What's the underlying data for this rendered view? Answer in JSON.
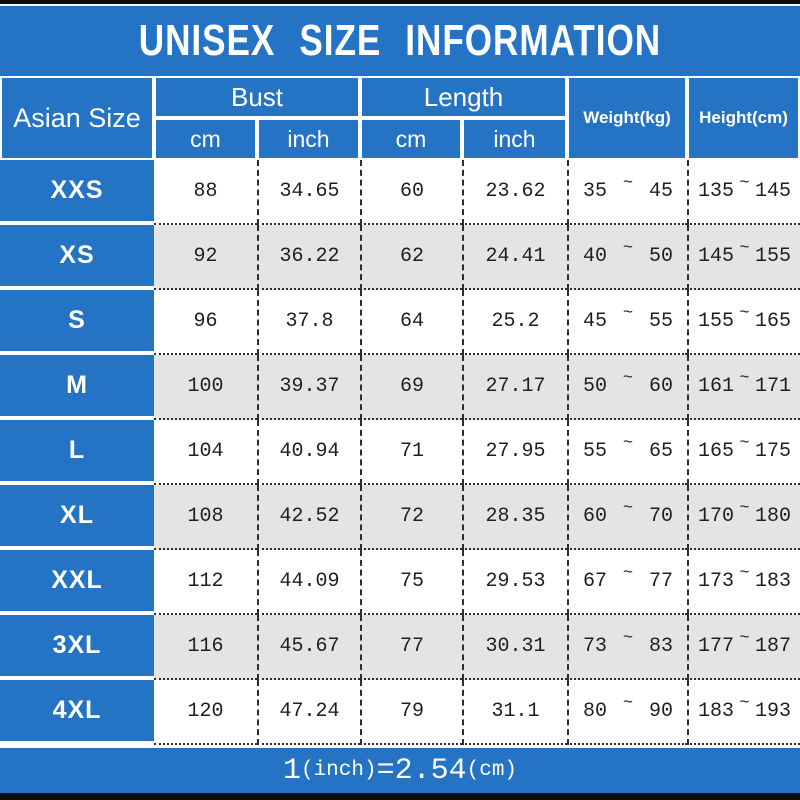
{
  "title": "UNISEX SIZE INFORMATION",
  "tilde": "~",
  "header": {
    "size_column": "Asian Size",
    "bust": {
      "label": "Bust",
      "cm": "cm",
      "inch": "inch"
    },
    "length": {
      "label": "Length",
      "cm": "cm",
      "inch": "inch"
    },
    "weight": "Weight(kg)",
    "height": "Height(cm)"
  },
  "rows": [
    {
      "size": "XXS",
      "bust_cm": "88",
      "bust_inch": "34.65",
      "length_cm": "60",
      "length_inch": "23.62",
      "weight_min": "35",
      "weight_max": "45",
      "height_min": "135",
      "height_max": "145"
    },
    {
      "size": "XS",
      "bust_cm": "92",
      "bust_inch": "36.22",
      "length_cm": "62",
      "length_inch": "24.41",
      "weight_min": "40",
      "weight_max": "50",
      "height_min": "145",
      "height_max": "155"
    },
    {
      "size": "S",
      "bust_cm": "96",
      "bust_inch": "37.8",
      "length_cm": "64",
      "length_inch": "25.2",
      "weight_min": "45",
      "weight_max": "55",
      "height_min": "155",
      "height_max": "165"
    },
    {
      "size": "M",
      "bust_cm": "100",
      "bust_inch": "39.37",
      "length_cm": "69",
      "length_inch": "27.17",
      "weight_min": "50",
      "weight_max": "60",
      "height_min": "161",
      "height_max": "171"
    },
    {
      "size": "L",
      "bust_cm": "104",
      "bust_inch": "40.94",
      "length_cm": "71",
      "length_inch": "27.95",
      "weight_min": "55",
      "weight_max": "65",
      "height_min": "165",
      "height_max": "175"
    },
    {
      "size": "XL",
      "bust_cm": "108",
      "bust_inch": "42.52",
      "length_cm": "72",
      "length_inch": "28.35",
      "weight_min": "60",
      "weight_max": "70",
      "height_min": "170",
      "height_max": "180"
    },
    {
      "size": "XXL",
      "bust_cm": "112",
      "bust_inch": "44.09",
      "length_cm": "75",
      "length_inch": "29.53",
      "weight_min": "67",
      "weight_max": "77",
      "height_min": "173",
      "height_max": "183"
    },
    {
      "size": "3XL",
      "bust_cm": "116",
      "bust_inch": "45.67",
      "length_cm": "77",
      "length_inch": "30.31",
      "weight_min": "73",
      "weight_max": "83",
      "height_min": "177",
      "height_max": "187"
    },
    {
      "size": "4XL",
      "bust_cm": "120",
      "bust_inch": "47.24",
      "length_cm": "79",
      "length_inch": "31.1",
      "weight_min": "80",
      "weight_max": "90",
      "height_min": "183",
      "height_max": "193"
    }
  ],
  "footer": {
    "v1": "1",
    "u1": "(inch)",
    "eq": "=",
    "v2": "2.54",
    "u2": "(cm)"
  },
  "colors": {
    "accent_blue": "#2473c4",
    "alt_row_gray": "#e4e4e4",
    "border_dark": "#2e2e2e",
    "bar_black": "#0e0e0e",
    "text_dark": "#1f1f1f"
  },
  "chart_data": {
    "type": "table",
    "title": "UNISEX SIZE INFORMATION",
    "columns": [
      "Asian Size",
      "Bust cm",
      "Bust inch",
      "Length cm",
      "Length inch",
      "Weight(kg)",
      "Height(cm)"
    ],
    "rows": [
      [
        "XXS",
        "88",
        "34.65",
        "60",
        "23.62",
        "35 ~ 45",
        "135 ~ 145"
      ],
      [
        "XS",
        "92",
        "36.22",
        "62",
        "24.41",
        "40 ~ 50",
        "145 ~ 155"
      ],
      [
        "S",
        "96",
        "37.8",
        "64",
        "25.2",
        "45 ~ 55",
        "155 ~ 165"
      ],
      [
        "M",
        "100",
        "39.37",
        "69",
        "27.17",
        "50 ~ 60",
        "161 ~ 171"
      ],
      [
        "L",
        "104",
        "40.94",
        "71",
        "27.95",
        "55 ~ 65",
        "165 ~ 175"
      ],
      [
        "XL",
        "108",
        "42.52",
        "72",
        "28.35",
        "60 ~ 70",
        "170 ~ 180"
      ],
      [
        "XXL",
        "112",
        "44.09",
        "75",
        "29.53",
        "67 ~ 77",
        "173 ~ 183"
      ],
      [
        "3XL",
        "116",
        "45.67",
        "77",
        "30.31",
        "73 ~ 83",
        "177 ~ 187"
      ],
      [
        "4XL",
        "120",
        "47.24",
        "79",
        "31.1",
        "80 ~ 90",
        "183 ~ 193"
      ]
    ],
    "note": "1(inch)=2.54(cm)",
    "layout": {
      "header_fill": "#2473c4",
      "alt_rows": true,
      "row_separators": "dotted",
      "col_separators": "dashed"
    }
  }
}
